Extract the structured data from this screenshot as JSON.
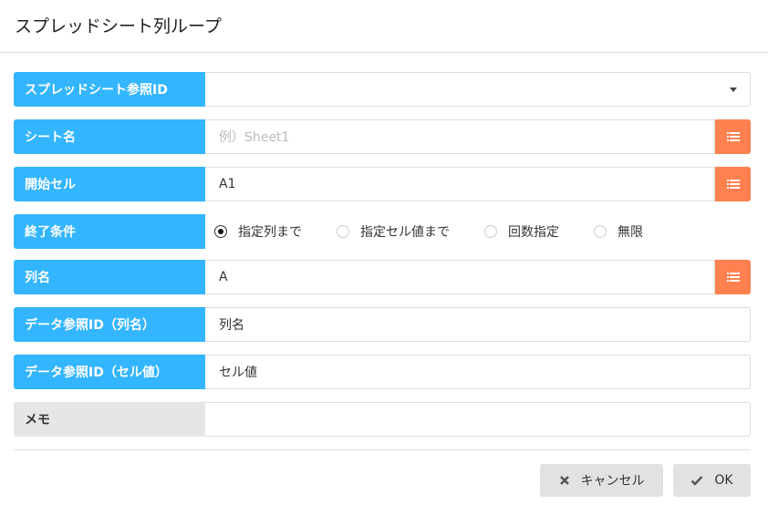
{
  "title": "スプレッドシート列ループ",
  "fields": [
    {
      "label": "スプレッドシート参照ID",
      "value": "",
      "type": "select"
    },
    {
      "label": "シート名",
      "placeholder": "例）Sheet1",
      "type": "text-picker"
    },
    {
      "label": "開始セル",
      "value": "A1",
      "type": "text-picker"
    },
    {
      "label": "終了条件",
      "type": "radio",
      "options": [
        "指定列まで",
        "指定セル値まで",
        "回数指定",
        "無限"
      ],
      "selected": 0
    },
    {
      "label": "列名",
      "value": "A",
      "type": "text-picker"
    },
    {
      "label": "データ参照ID（列名）",
      "value": "列名",
      "type": "text"
    },
    {
      "label": "データ参照ID（セル値）",
      "value": "セル値",
      "type": "text"
    },
    {
      "label": "メモ",
      "value": "",
      "type": "text"
    }
  ],
  "buttons": {
    "cancel": "キャンセル",
    "ok": "OK"
  },
  "colors": {
    "label": "#33b5ff",
    "picker": "#ff8150",
    "button": "#e2e2e2"
  }
}
